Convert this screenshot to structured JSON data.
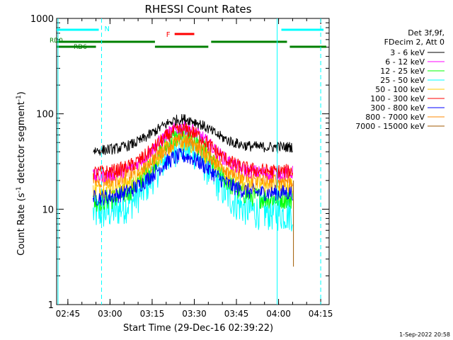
{
  "chart_data": {
    "type": "line",
    "title": "RHESSI Count Rates",
    "xlabel": "Start Time (29-Dec-16 02:39:22)",
    "ylabel": {
      "prefix": "Count Rate (s",
      "sup": "-1",
      "suffix": " detector segment",
      "sup2": "-1",
      "close": ")"
    },
    "ylog": true,
    "xlim": [
      161,
      258
    ],
    "ylim": [
      1,
      1000
    ],
    "x_ticks": [
      {
        "v": 165,
        "label": "02:45"
      },
      {
        "v": 180,
        "label": "03:00"
      },
      {
        "v": 195,
        "label": "03:15"
      },
      {
        "v": 210,
        "label": "03:30"
      },
      {
        "v": 225,
        "label": "03:45"
      },
      {
        "v": 240,
        "label": "04:00"
      },
      {
        "v": 255,
        "label": "04:15"
      }
    ],
    "y_ticks": [
      {
        "v": 1,
        "label": "1"
      },
      {
        "v": 10,
        "label": "10"
      },
      {
        "v": 100,
        "label": "100"
      },
      {
        "v": 1000,
        "label": "1000"
      }
    ],
    "legend_header": [
      "Det 3f,9f,",
      "FDecim 2, Att 0"
    ],
    "legend_placement": "right",
    "x_range_data": [
      174,
      245
    ],
    "series": [
      {
        "name": "3 - 6 keV",
        "color": "#000000",
        "start": 41,
        "peak": 88,
        "end": 45,
        "noise": 0.06
      },
      {
        "name": "6 - 12 keV",
        "color": "#ff00ff",
        "start": 22,
        "peak": 72,
        "end": 24,
        "noise": 0.08
      },
      {
        "name": "12 - 25 keV",
        "color": "#00ff00",
        "start": 12,
        "peak": 60,
        "end": 13,
        "noise": 0.12
      },
      {
        "name": "25 - 50 keV",
        "color": "#00ffff",
        "start": 9,
        "peak": 45,
        "end": 9,
        "noise": 0.2
      },
      {
        "name": "50 - 100 keV",
        "color": "#ffcc00",
        "start": 16,
        "peak": 50,
        "end": 18,
        "noise": 0.1
      },
      {
        "name": "100 - 300 keV",
        "color": "#ff0000",
        "start": 24,
        "peak": 68,
        "end": 25,
        "noise": 0.08
      },
      {
        "name": "300 - 800 keV",
        "color": "#0000ff",
        "start": 13,
        "peak": 36,
        "end": 15,
        "noise": 0.09
      },
      {
        "name": "800 - 7000 keV",
        "color": "#ff8800",
        "start": 20,
        "peak": 52,
        "end": 20,
        "noise": 0.09
      },
      {
        "name": "7000 - 15000 keV",
        "color": "#a05a00",
        "start": 2.5,
        "peak": 2.5,
        "end": 2.5,
        "noise": 0.0
      }
    ],
    "peak_time": 206,
    "peak_width": 14,
    "attenuator_bars": {
      "N": {
        "label": "N",
        "color": "#00ffff",
        "segments": [
          [
            161,
            176
          ],
          [
            241,
            256
          ]
        ]
      },
      "F": {
        "label": "F",
        "color": "#ff0000",
        "segments": [
          [
            203,
            210
          ]
        ]
      },
      "RD0": {
        "label": "RD0",
        "color": "#008000",
        "segments": [
          [
            161,
            196
          ],
          [
            216,
            243
          ]
        ]
      },
      "RD6": {
        "label": "RD6",
        "color": "#008000",
        "segments": [
          [
            161,
            175
          ],
          [
            196,
            215
          ],
          [
            244,
            257
          ]
        ]
      }
    },
    "vlines": [
      {
        "x": 161.5,
        "style": "solid"
      },
      {
        "x": 177,
        "style": "dashed"
      },
      {
        "x": 239.5,
        "style": "solid"
      },
      {
        "x": 255,
        "style": "dashed"
      }
    ]
  },
  "footer_date": "1-Sep-2022 20:58"
}
